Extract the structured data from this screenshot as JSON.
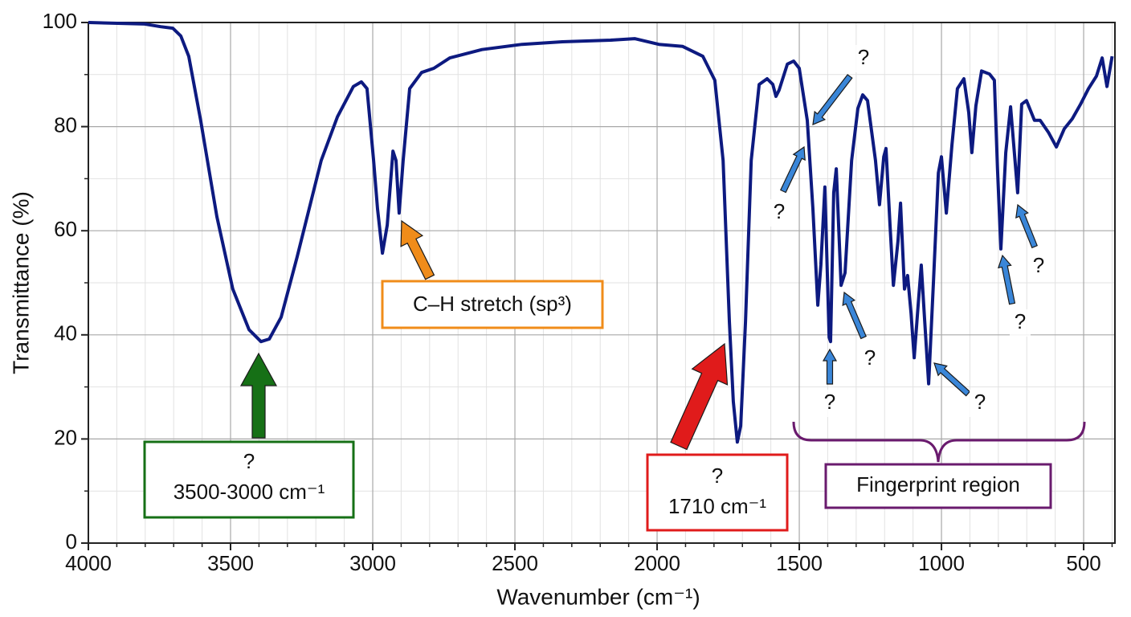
{
  "chart_data": {
    "type": "line",
    "xlabel": "Wavenumber (cm⁻¹)",
    "ylabel": "Transmittance (%)",
    "xlim": [
      4000,
      390
    ],
    "ylim": [
      0,
      100
    ],
    "xticks": [
      4000,
      3500,
      3000,
      2500,
      2000,
      1500,
      1000,
      500
    ],
    "yticks": [
      0,
      20,
      40,
      60,
      80,
      100
    ],
    "xminorticks": [
      3900,
      3800,
      3700,
      3600,
      3400,
      3300,
      3200,
      3100,
      2900,
      2800,
      2700,
      2600,
      2400,
      2300,
      2200,
      2100,
      1900,
      1800,
      1700,
      1600,
      1400,
      1300,
      1200,
      1100,
      900,
      800,
      700,
      600,
      400
    ],
    "yminorticks": [
      10,
      30,
      50,
      70,
      90
    ],
    "grid": true,
    "x": [
      4000,
      3802,
      3746,
      3703,
      3675,
      3647,
      3605,
      3548,
      3492,
      3435,
      3393,
      3364,
      3322,
      3266,
      3181,
      3124,
      3068,
      3040,
      3020,
      2997,
      2983,
      2966,
      2949,
      2929,
      2918,
      2907,
      2893,
      2870,
      2828,
      2785,
      2729,
      2616,
      2475,
      2333,
      2164,
      2079,
      1994,
      1910,
      1839,
      1797,
      1768,
      1746,
      1732,
      1718,
      1706,
      1689,
      1669,
      1641,
      1613,
      1593,
      1582,
      1571,
      1542,
      1520,
      1500,
      1472,
      1452,
      1435,
      1424,
      1410,
      1395,
      1390,
      1379,
      1370,
      1353,
      1339,
      1316,
      1294,
      1277,
      1260,
      1232,
      1218,
      1203,
      1195,
      1181,
      1169,
      1153,
      1144,
      1130,
      1119,
      1107,
      1096,
      1082,
      1071,
      1059,
      1045,
      1028,
      1011,
      1000,
      983,
      963,
      944,
      921,
      904,
      893,
      879,
      859,
      831,
      814,
      803,
      791,
      774,
      757,
      746,
      732,
      718,
      701,
      673,
      653,
      624,
      596,
      568,
      540,
      511,
      483,
      455,
      435,
      418,
      400
    ],
    "series": [
      {
        "name": "Transmittance",
        "color": "#0d1a80",
        "values": [
          100,
          99.7,
          99.2,
          98.9,
          97.4,
          93.5,
          81.2,
          62.7,
          48.8,
          41.0,
          38.7,
          39.2,
          43.4,
          54.9,
          73.5,
          81.9,
          87.7,
          88.6,
          87.3,
          73.5,
          64.2,
          55.7,
          61.1,
          75.3,
          73.5,
          63.4,
          73.5,
          87.3,
          90.4,
          91.2,
          93.2,
          94.8,
          95.8,
          96.3,
          96.6,
          96.9,
          95.8,
          95.4,
          93.5,
          88.9,
          73.5,
          42.6,
          27.2,
          19.4,
          22.5,
          42.6,
          73.5,
          88.1,
          89.2,
          88.1,
          85.8,
          87.0,
          92.0,
          92.6,
          91.2,
          81.2,
          64.2,
          45.7,
          53.4,
          68.4,
          39.5,
          38.7,
          67.3,
          71.9,
          49.5,
          51.9,
          73.5,
          83.5,
          86.1,
          85.0,
          73.5,
          65.0,
          74.2,
          75.8,
          61.1,
          49.5,
          58.0,
          65.3,
          48.8,
          51.4,
          44.1,
          35.6,
          45.7,
          53.4,
          42.6,
          30.6,
          50.3,
          71.1,
          74.2,
          63.4,
          76.5,
          87.3,
          89.2,
          82.7,
          75.0,
          84.0,
          90.7,
          90.1,
          88.9,
          71.9,
          56.5,
          75.0,
          83.8,
          76.5,
          67.3,
          84.3,
          85.0,
          81.2,
          81.2,
          78.9,
          76.1,
          79.6,
          81.5,
          84.3,
          87.3,
          89.7,
          93.2,
          87.7,
          93.5
        ]
      }
    ],
    "annotations": [
      {
        "lines": [
          "?",
          "3500-3000 cm⁻¹"
        ],
        "color": "#167016"
      },
      {
        "lines": [
          "C–H stretch (sp³)"
        ],
        "color": "#f08c1a"
      },
      {
        "lines": [
          "?",
          "1710 cm⁻¹"
        ],
        "color": "#e01b1b"
      },
      {
        "lines": [
          "Fingerprint region"
        ],
        "color": "#6a1b6e"
      }
    ],
    "question_labels": [
      "?",
      "?",
      "?",
      "?",
      "?",
      "?",
      "?"
    ],
    "question_color": "#3a86d8"
  }
}
